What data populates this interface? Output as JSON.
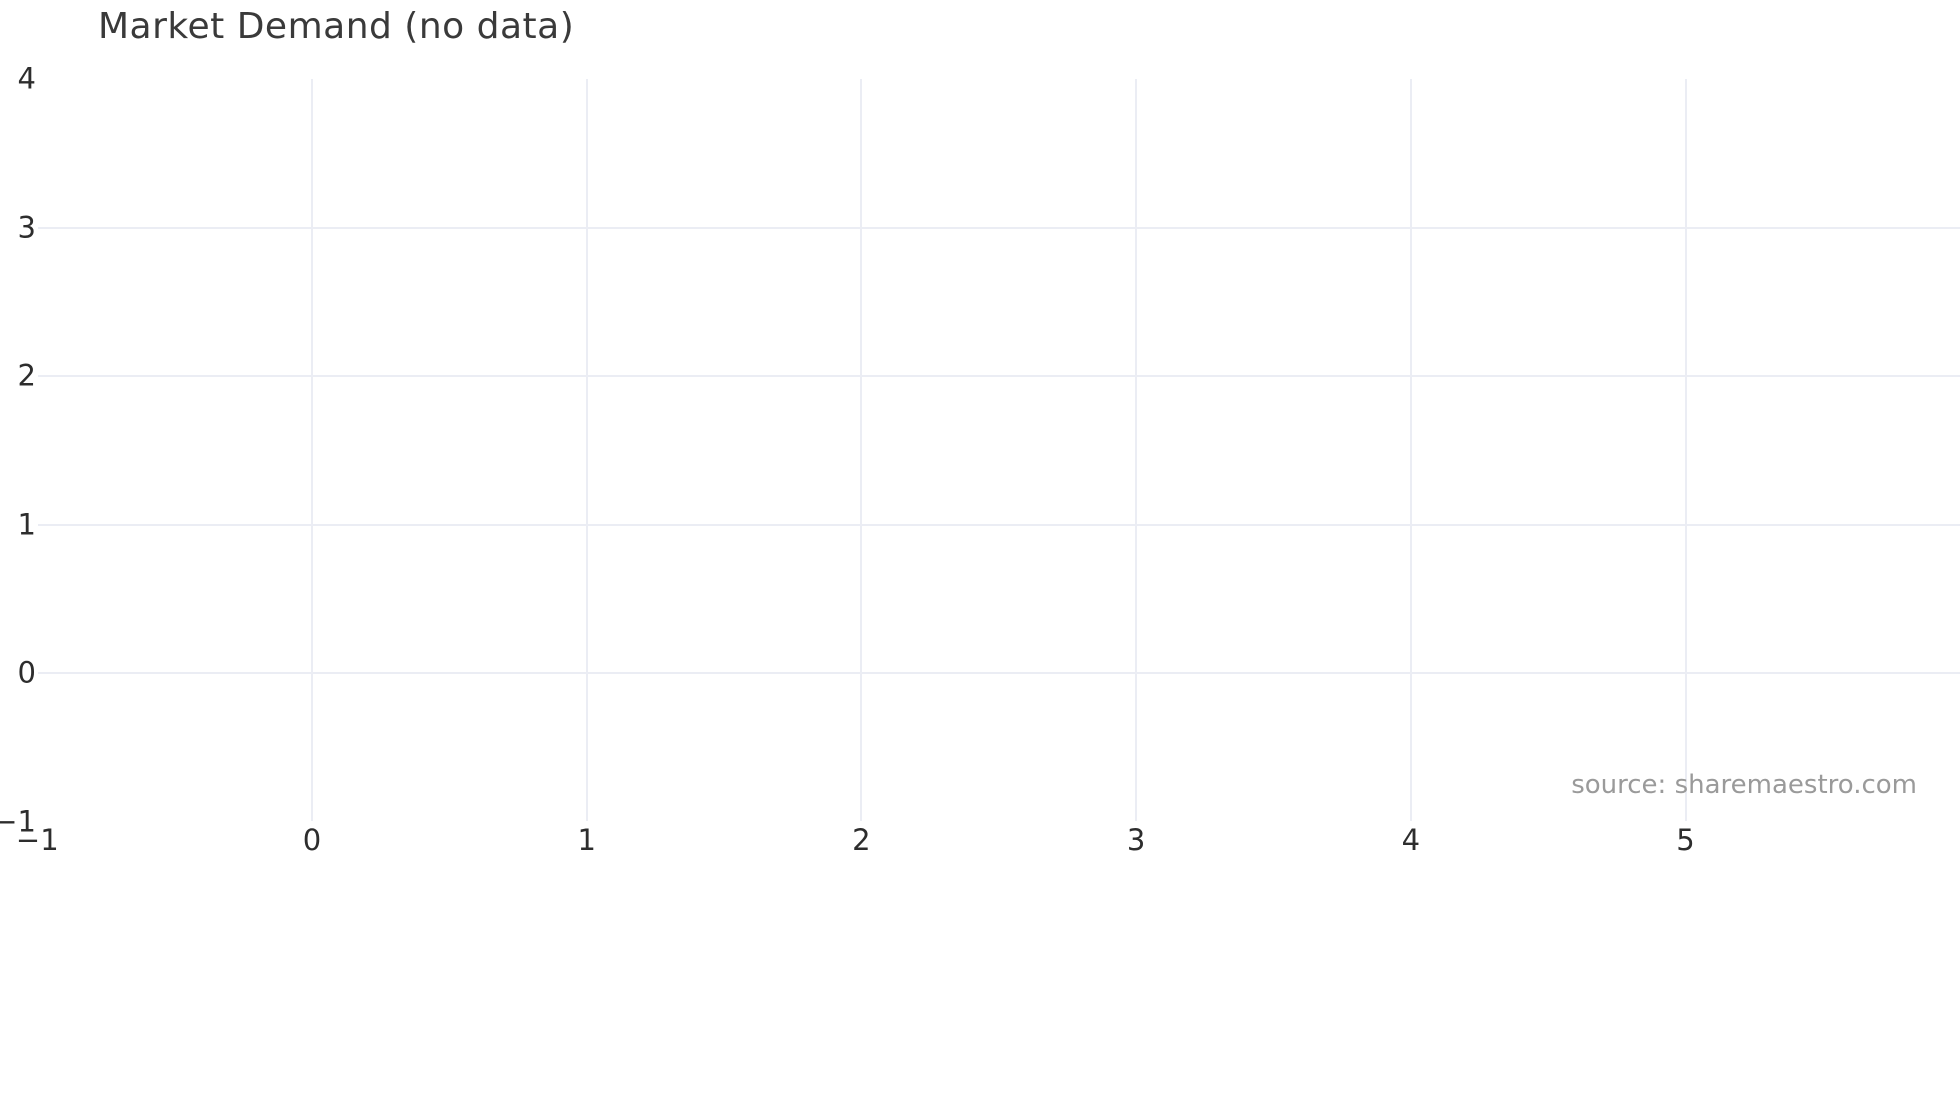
{
  "chart_data": {
    "type": "scatter",
    "title": "Market Demand (no data)",
    "series": [],
    "xlabel": "",
    "ylabel": "",
    "xlim": [
      -1,
      5.96
    ],
    "ylim": [
      -1,
      4
    ],
    "grid": true,
    "legend": false,
    "x_ticks": [
      "−1",
      "0",
      "1",
      "2",
      "3",
      "4",
      "5"
    ],
    "x_tick_values": [
      -1,
      0,
      1,
      2,
      3,
      4,
      5
    ],
    "y_ticks": [
      "4",
      "3",
      "2",
      "1",
      "0",
      "−1"
    ],
    "y_tick_values": [
      4,
      3,
      2,
      1,
      0,
      -1
    ],
    "x_grid_values": [
      0,
      1,
      2,
      3,
      4,
      5
    ],
    "y_grid_values": [
      3,
      2,
      1,
      0
    ],
    "annotation": "source: sharemaestro.com",
    "colors": {
      "background": "#ffffff",
      "grid": "#ebedf4",
      "title": "#3a3a3a",
      "tick": "#2d2d2d",
      "source": "#9a9a9a"
    }
  }
}
